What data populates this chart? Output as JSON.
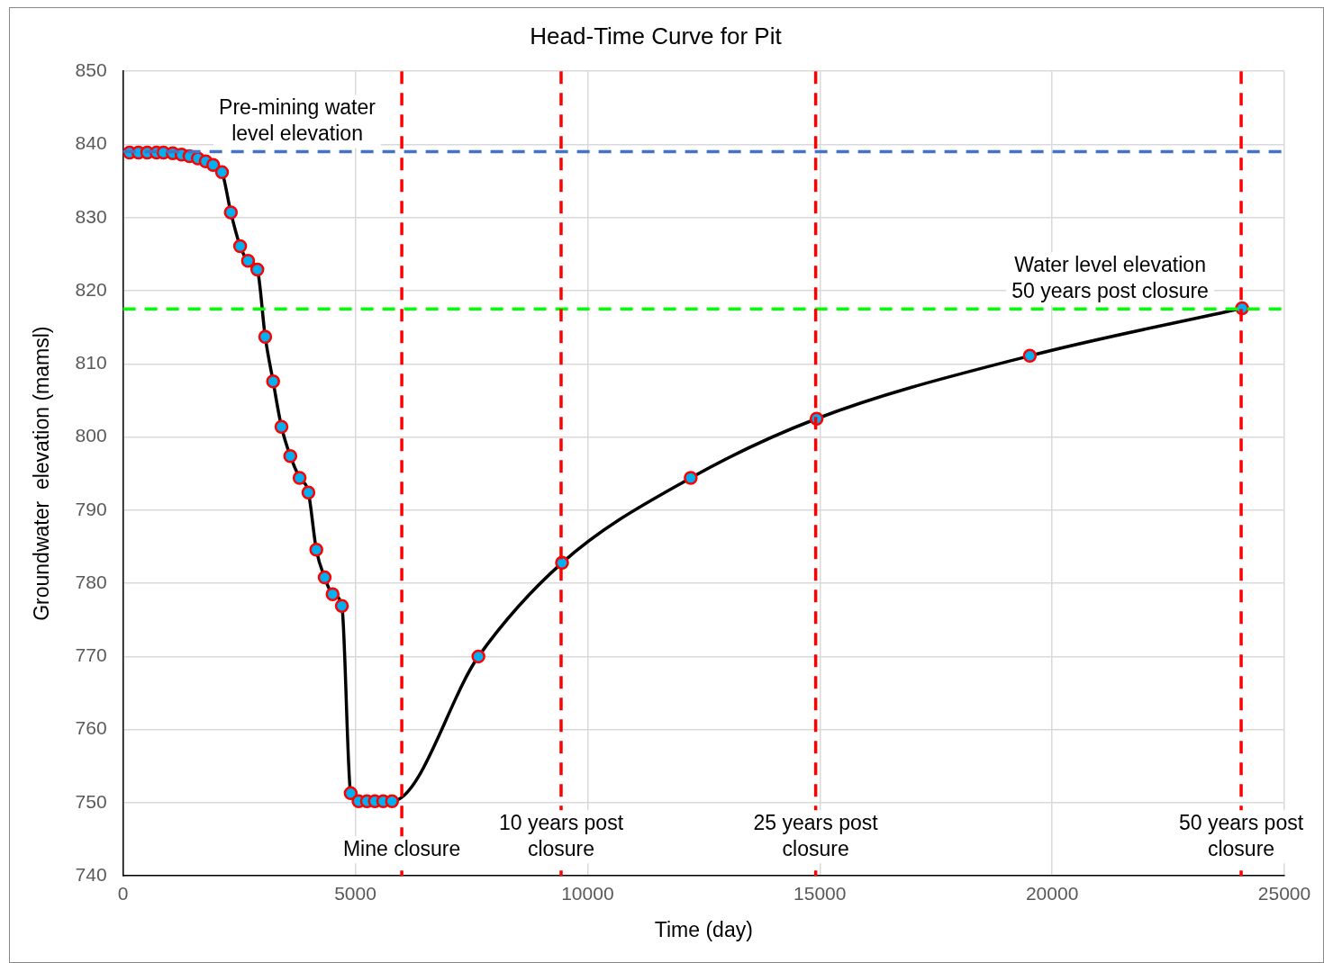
{
  "chart_data": {
    "type": "line",
    "title": "Head-Time Curve for Pit",
    "xlabel": "Time (day)",
    "ylabel": "Groundwater  elevation (mamsl)",
    "xlim": [
      0,
      25000
    ],
    "xticks": [
      0,
      5000,
      10000,
      15000,
      20000,
      25000
    ],
    "ylim": [
      740,
      850
    ],
    "yticks": [
      740,
      750,
      760,
      770,
      780,
      790,
      800,
      810,
      820,
      830,
      840,
      850
    ],
    "grid": true,
    "legend": false,
    "marker": "circle",
    "line_style": "solid",
    "series": [
      {
        "color": "#000000",
        "colors": [
          "#00b0f0",
          "#00b0f0",
          "#00b0f0",
          "#00b0f0",
          "#00b0f0",
          "#00b0f0",
          "#00b0f0",
          "#00b0f0",
          "#00b0f0",
          "#00b0f0",
          "#00b0f0",
          "#00b0f0",
          "#00b0f0",
          "#00b0f0",
          "#00b0f0",
          "#00b0f0",
          "#00b0f0",
          "#00b0f0",
          "#00b0f0",
          "#00b0f0",
          "#00b0f0",
          "#00b0f0",
          "#00b0f0",
          "#00b0f0",
          "#00b0f0",
          "#00b0f0",
          "#00b0f0",
          "#00b0f0",
          "#00b0f0",
          "#00b0f0",
          "#00b0f0",
          "#00b0f0",
          "#00b0f0",
          "#00b0f0",
          "#00b0f0",
          "#00b0f0",
          "#00b0f0",
          "#00b0f0"
        ],
        "x": [
          140,
          330,
          520,
          720,
          870,
          1070,
          1260,
          1430,
          1610,
          1780,
          1940,
          2130,
          2320,
          2520,
          2690,
          2890,
          3060,
          3230,
          3410,
          3600,
          3800,
          3990,
          4160,
          4340,
          4510,
          4710,
          4900,
          5070,
          5250,
          5420,
          5600,
          5790,
          7650,
          9450,
          12220,
          14930,
          19520,
          24090
        ],
        "values": [
          838.9,
          838.9,
          838.9,
          838.9,
          838.9,
          838.8,
          838.6,
          838.4,
          838.1,
          837.7,
          837.2,
          836.2,
          830.7,
          826.1,
          824.1,
          822.9,
          813.7,
          807.6,
          801.4,
          797.4,
          794.4,
          792.4,
          784.6,
          780.8,
          778.5,
          776.9,
          751.3,
          750.2,
          750.2,
          750.2,
          750.2,
          750.2,
          770.0,
          782.8,
          794.4,
          802.5,
          811.1,
          817.6
        ]
      }
    ],
    "ref_lines": [
      {
        "axis": "y",
        "value": 839,
        "label": "Pre-mining water level elevation",
        "color": "#4472c4",
        "line_style": "dashed"
      },
      {
        "axis": "y",
        "value": 817.5,
        "label": "Water level elevation 50 years post closure",
        "color": "#00ff00",
        "line_style": "dashed"
      },
      {
        "axis": "x",
        "value": 6000,
        "label": "Mine closure",
        "color": "#ff0000",
        "line_style": "dashed"
      },
      {
        "axis": "x",
        "value": 9430,
        "label": "10 years post closure",
        "color": "#ff0000",
        "line_style": "dashed"
      },
      {
        "axis": "x",
        "value": 14910,
        "label": "25 years post closure",
        "color": "#ff0000",
        "line_style": "dashed"
      },
      {
        "axis": "x",
        "value": 24070,
        "label": "50 years post closure",
        "color": "#ff0000",
        "line_style": "dashed"
      }
    ]
  }
}
